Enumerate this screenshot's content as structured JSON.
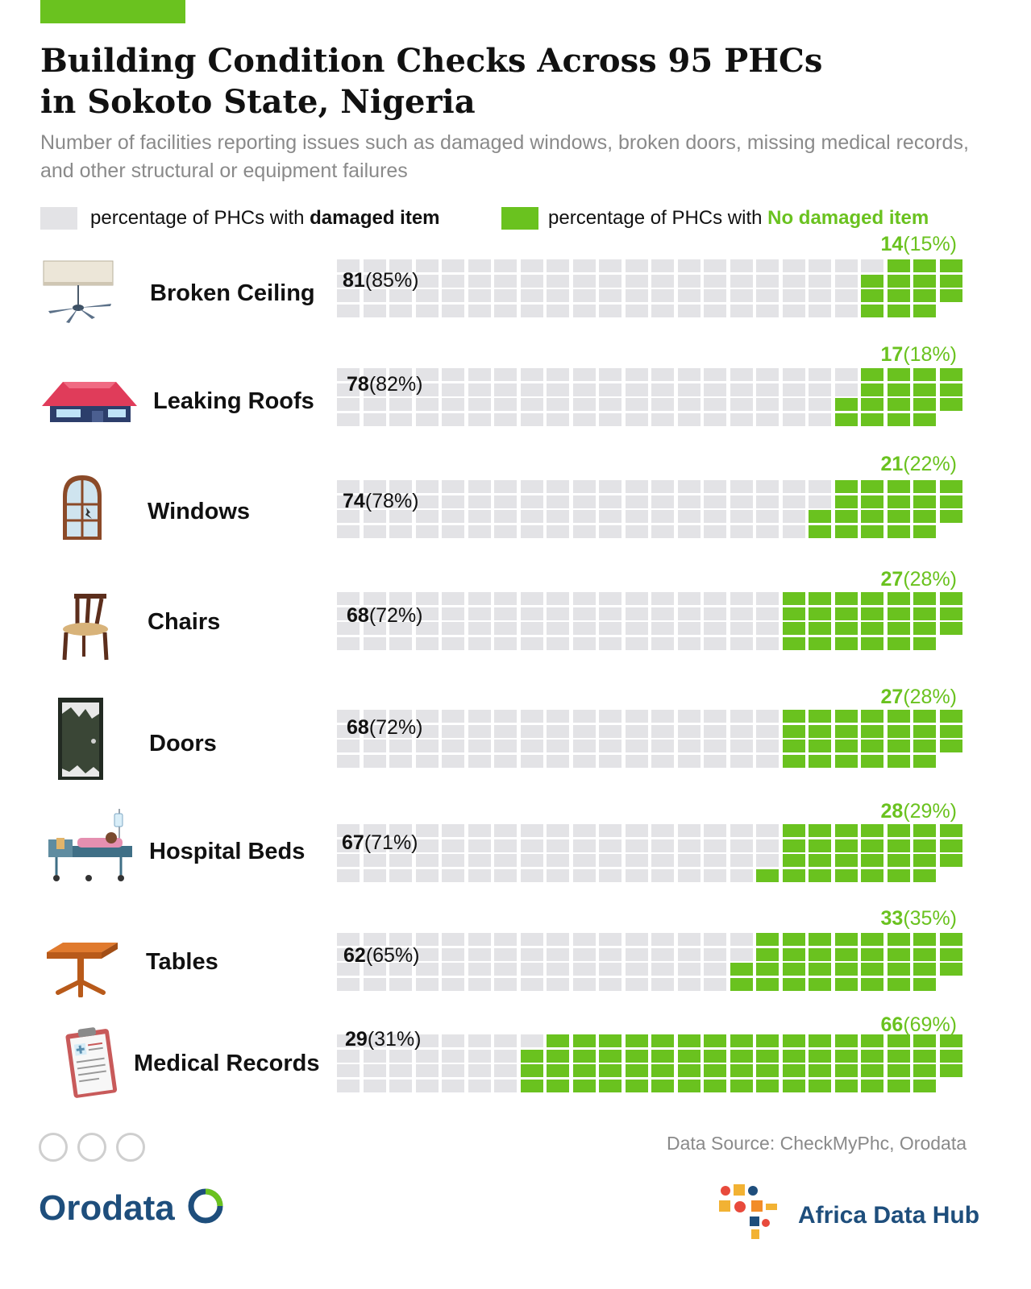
{
  "header": {
    "title_line1": "Building Condition Checks Across 95 PHCs",
    "title_line2": "in Sokoto State, Nigeria",
    "subtitle": "Number of facilities reporting issues such as damaged windows, broken doors, missing medical records, and other structural or equipment failures"
  },
  "legend": {
    "damaged_prefix": "percentage of PHCs with ",
    "damaged_bold": "damaged item",
    "ok_prefix": "percentage of PHCs with ",
    "ok_bold": "No damaged item"
  },
  "colors": {
    "damaged": "#e3e3e6",
    "ok": "#6ac21f",
    "brand": "#1e4e7c"
  },
  "chart_data": {
    "type": "waffle",
    "total": 95,
    "categories": [
      "Broken Ceiling",
      "Leaking Roofs",
      "Windows",
      "Chairs",
      "Doors",
      "Hospital Beds",
      "Tables",
      "Medical Records"
    ],
    "series": [
      {
        "name": "damaged item",
        "values": [
          81,
          78,
          74,
          68,
          68,
          67,
          62,
          29
        ],
        "percent_labels": [
          "(85%)",
          "(82%)",
          "(78%)",
          "(72%)",
          "(72%)",
          "(71%)",
          "(65%)",
          "(31%)"
        ]
      },
      {
        "name": "No damaged item",
        "values": [
          14,
          17,
          21,
          27,
          27,
          28,
          33,
          66
        ],
        "percent_labels": [
          "(15%)",
          "(18%)",
          "(22%)",
          "(28%)",
          "(28%)",
          "(29%)",
          "(35%)",
          "(69%)"
        ]
      }
    ]
  },
  "rows": [
    {
      "icon": "ceiling-fan-icon"
    },
    {
      "icon": "roof-house-icon"
    },
    {
      "icon": "broken-window-icon"
    },
    {
      "icon": "chair-icon"
    },
    {
      "icon": "broken-door-icon"
    },
    {
      "icon": "hospital-bed-icon"
    },
    {
      "icon": "table-icon"
    },
    {
      "icon": "clipboard-icon"
    }
  ],
  "footer": {
    "source": "Data Source: CheckMyPhc, Orodata",
    "brand_left": "Orodata",
    "brand_right": "Africa Data Hub",
    "license_icons": [
      "cc-icon",
      "attribution-icon",
      "no-derivatives-icon"
    ]
  }
}
